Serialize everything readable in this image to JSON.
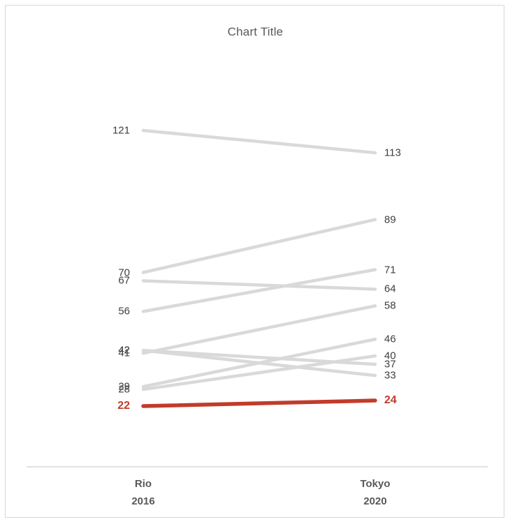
{
  "chart_data": {
    "type": "line",
    "variant": "slopegraph",
    "title": "Chart Title",
    "categories": [
      {
        "line1": "Rio",
        "line2": "2016"
      },
      {
        "line1": "Tokyo",
        "line2": "2020"
      }
    ],
    "series": [
      {
        "values": [
          121,
          113
        ],
        "highlighted": false
      },
      {
        "values": [
          70,
          89
        ],
        "highlighted": false
      },
      {
        "values": [
          67,
          64
        ],
        "highlighted": false
      },
      {
        "values": [
          56,
          71
        ],
        "highlighted": false
      },
      {
        "values": [
          42,
          37
        ],
        "highlighted": false
      },
      {
        "values": [
          41,
          58
        ],
        "highlighted": false
      },
      {
        "values": [
          42,
          33
        ],
        "highlighted": false
      },
      {
        "values": [
          29,
          46
        ],
        "highlighted": false
      },
      {
        "values": [
          28,
          40
        ],
        "highlighted": false
      },
      {
        "values": [
          22,
          24
        ],
        "highlighted": true
      }
    ],
    "data_labels_shown": true,
    "legend": "none",
    "grid": "off",
    "ylim": [
      0,
      130
    ],
    "colors": {
      "line": "#d9d9d9",
      "highlight": "#c23b2b",
      "label_text": "#404040",
      "title_text": "#595959",
      "axis_line": "#d9d9d9",
      "frame_border": "#d6d6d6",
      "background": "#ffffff"
    }
  }
}
